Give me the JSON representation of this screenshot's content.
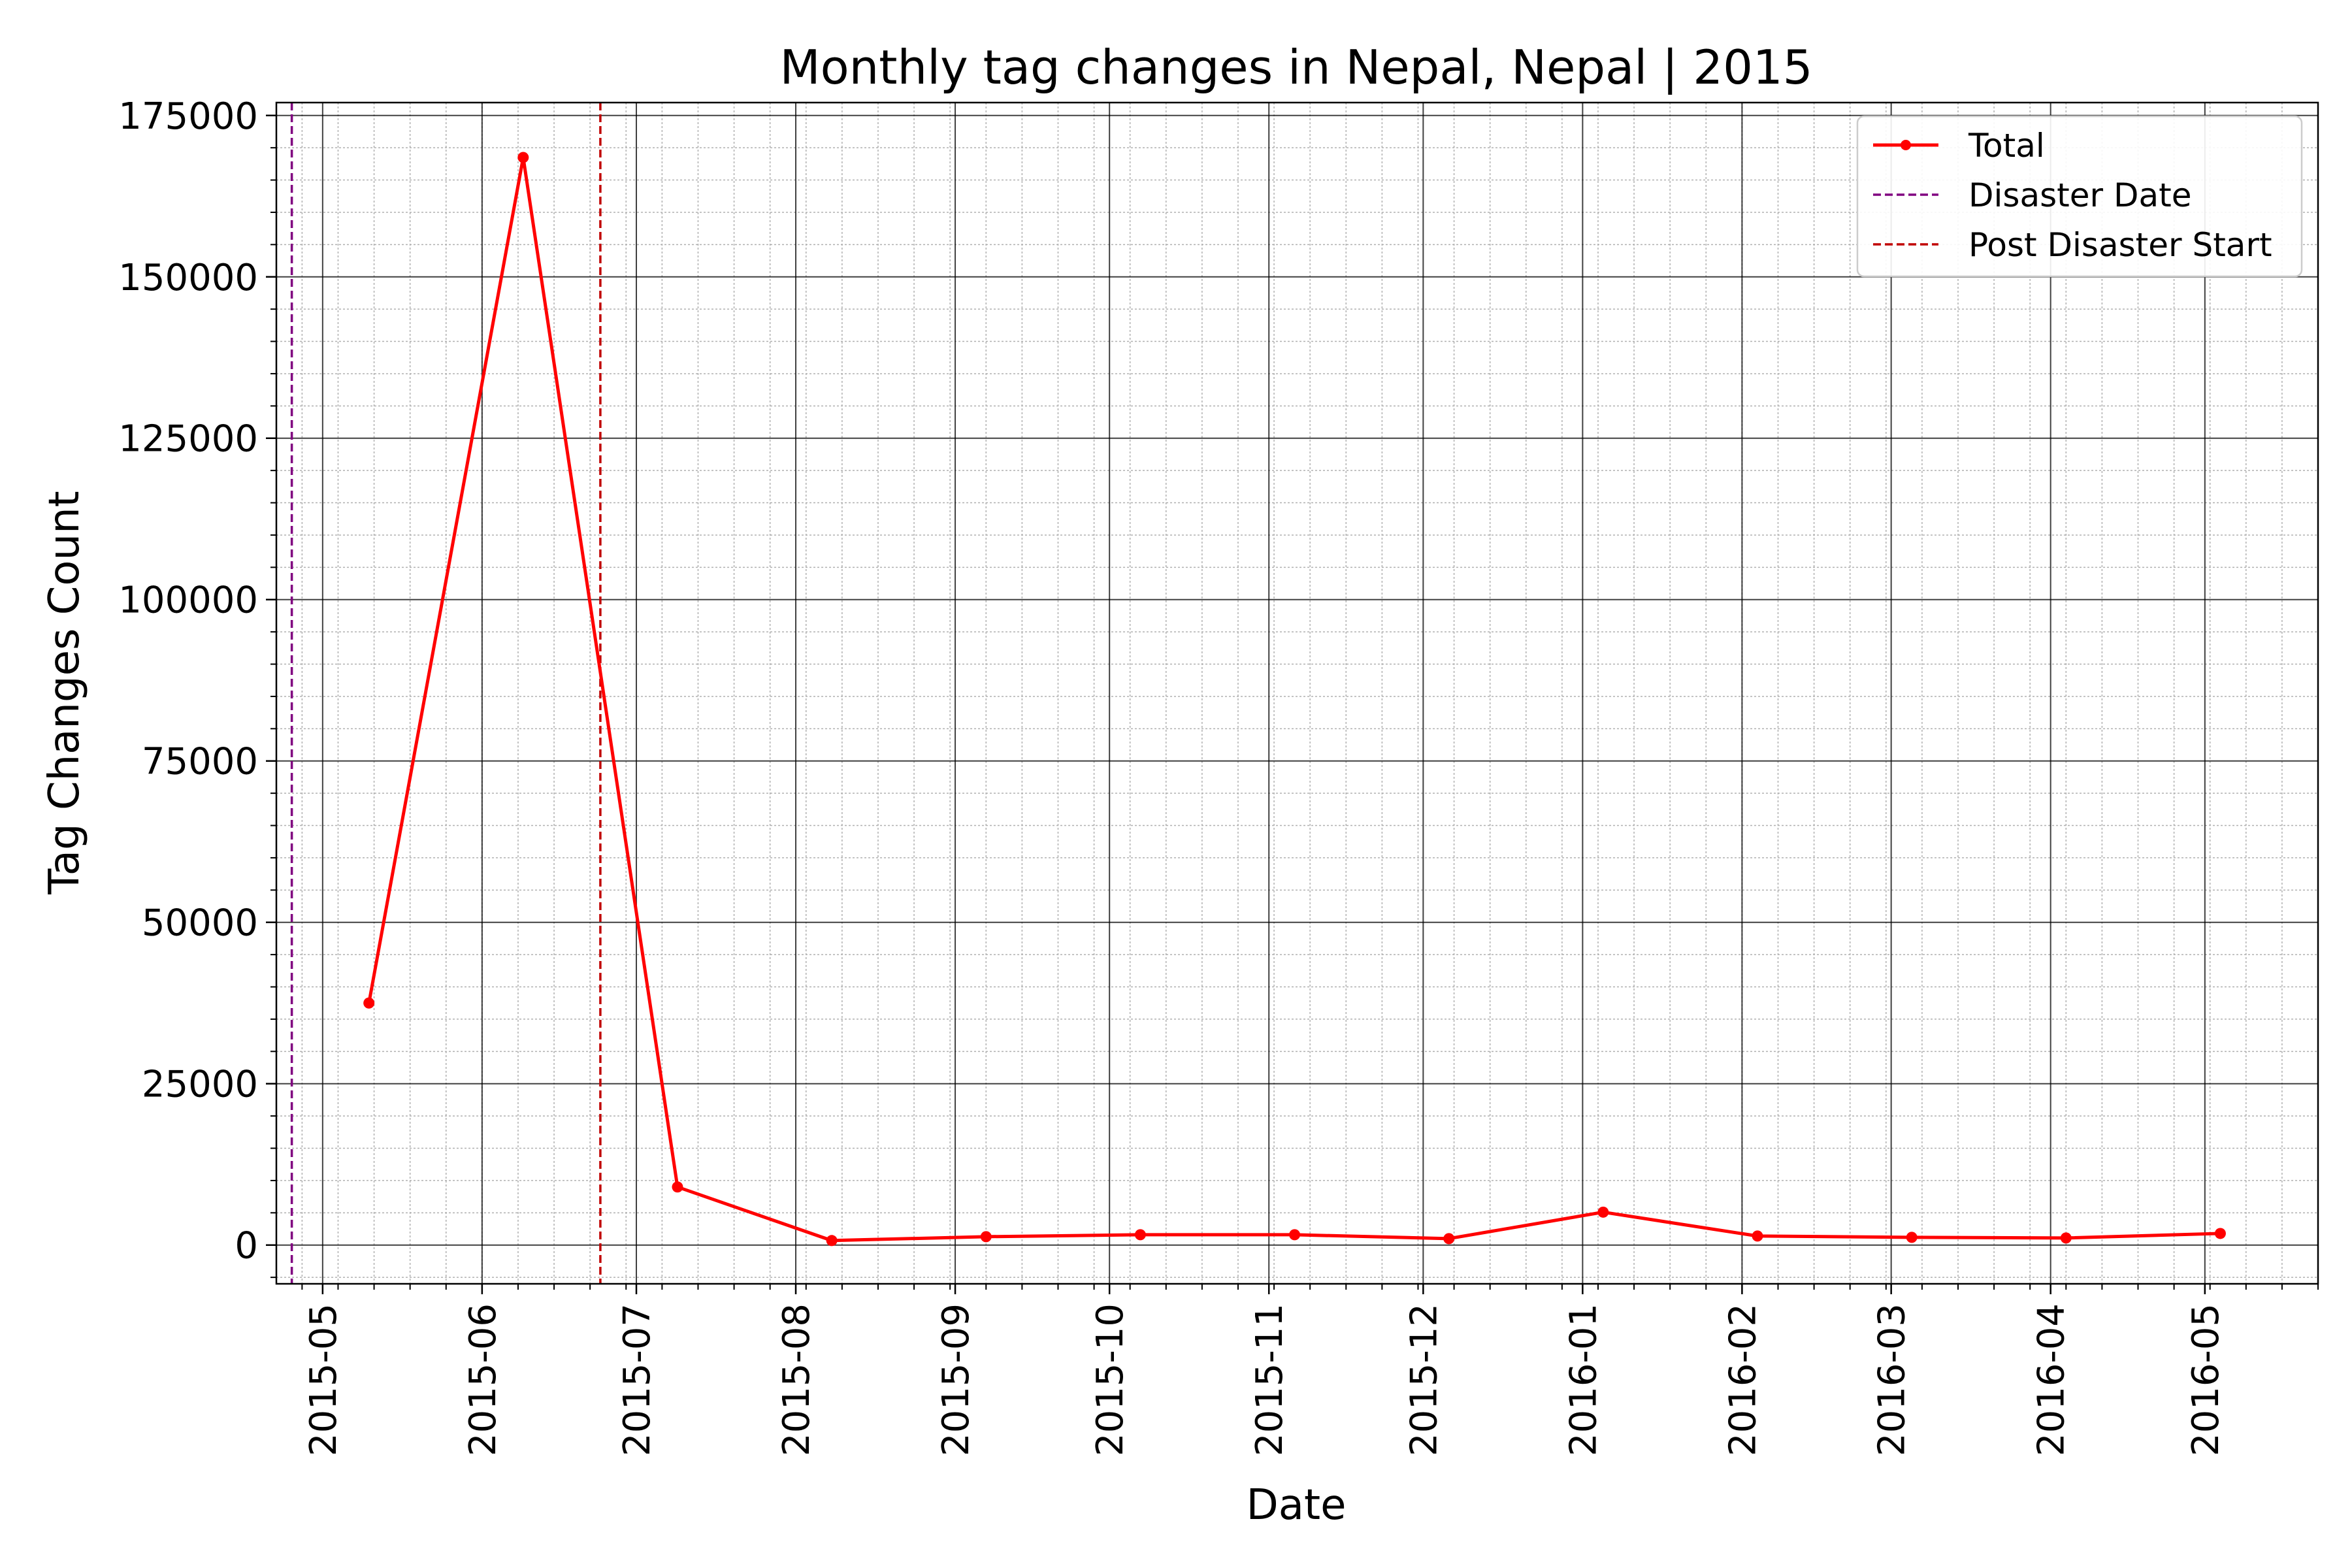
{
  "chart_data": {
    "type": "line",
    "title": "Monthly tag changes in Nepal, Nepal | 2015",
    "xlabel": "Date",
    "ylabel": "Tag Changes Count",
    "xlim": [
      "2015-04-22",
      "2016-05-23"
    ],
    "ylim": [
      -6000,
      177000
    ],
    "x_ticks": [
      "2015-05",
      "2015-06",
      "2015-07",
      "2015-08",
      "2015-09",
      "2015-10",
      "2015-11",
      "2015-12",
      "2016-01",
      "2016-02",
      "2016-03",
      "2016-04",
      "2016-05"
    ],
    "y_ticks": [
      0,
      25000,
      50000,
      75000,
      100000,
      125000,
      150000,
      175000
    ],
    "grid": "major and minor",
    "legend_position": "top-right",
    "series": [
      {
        "name": "Total",
        "color": "#ff0000",
        "marker": "circle",
        "x": [
          "2015-05-10",
          "2015-06-09",
          "2015-07-09",
          "2015-08-08",
          "2015-09-07",
          "2015-10-07",
          "2015-11-06",
          "2015-12-06",
          "2016-01-05",
          "2016-02-04",
          "2016-03-05",
          "2016-04-04",
          "2016-05-04"
        ],
        "y": [
          37500,
          168500,
          9000,
          700,
          1300,
          1600,
          1600,
          1000,
          5100,
          1400,
          1200,
          1100,
          1800
        ]
      }
    ],
    "reference_lines": [
      {
        "name": "Disaster Date",
        "x": "2015-04-25",
        "color": "#800080",
        "style": "dashed"
      },
      {
        "name": "Post Disaster Start",
        "x": "2015-06-24",
        "color": "#c00000",
        "style": "dashed"
      }
    ]
  }
}
